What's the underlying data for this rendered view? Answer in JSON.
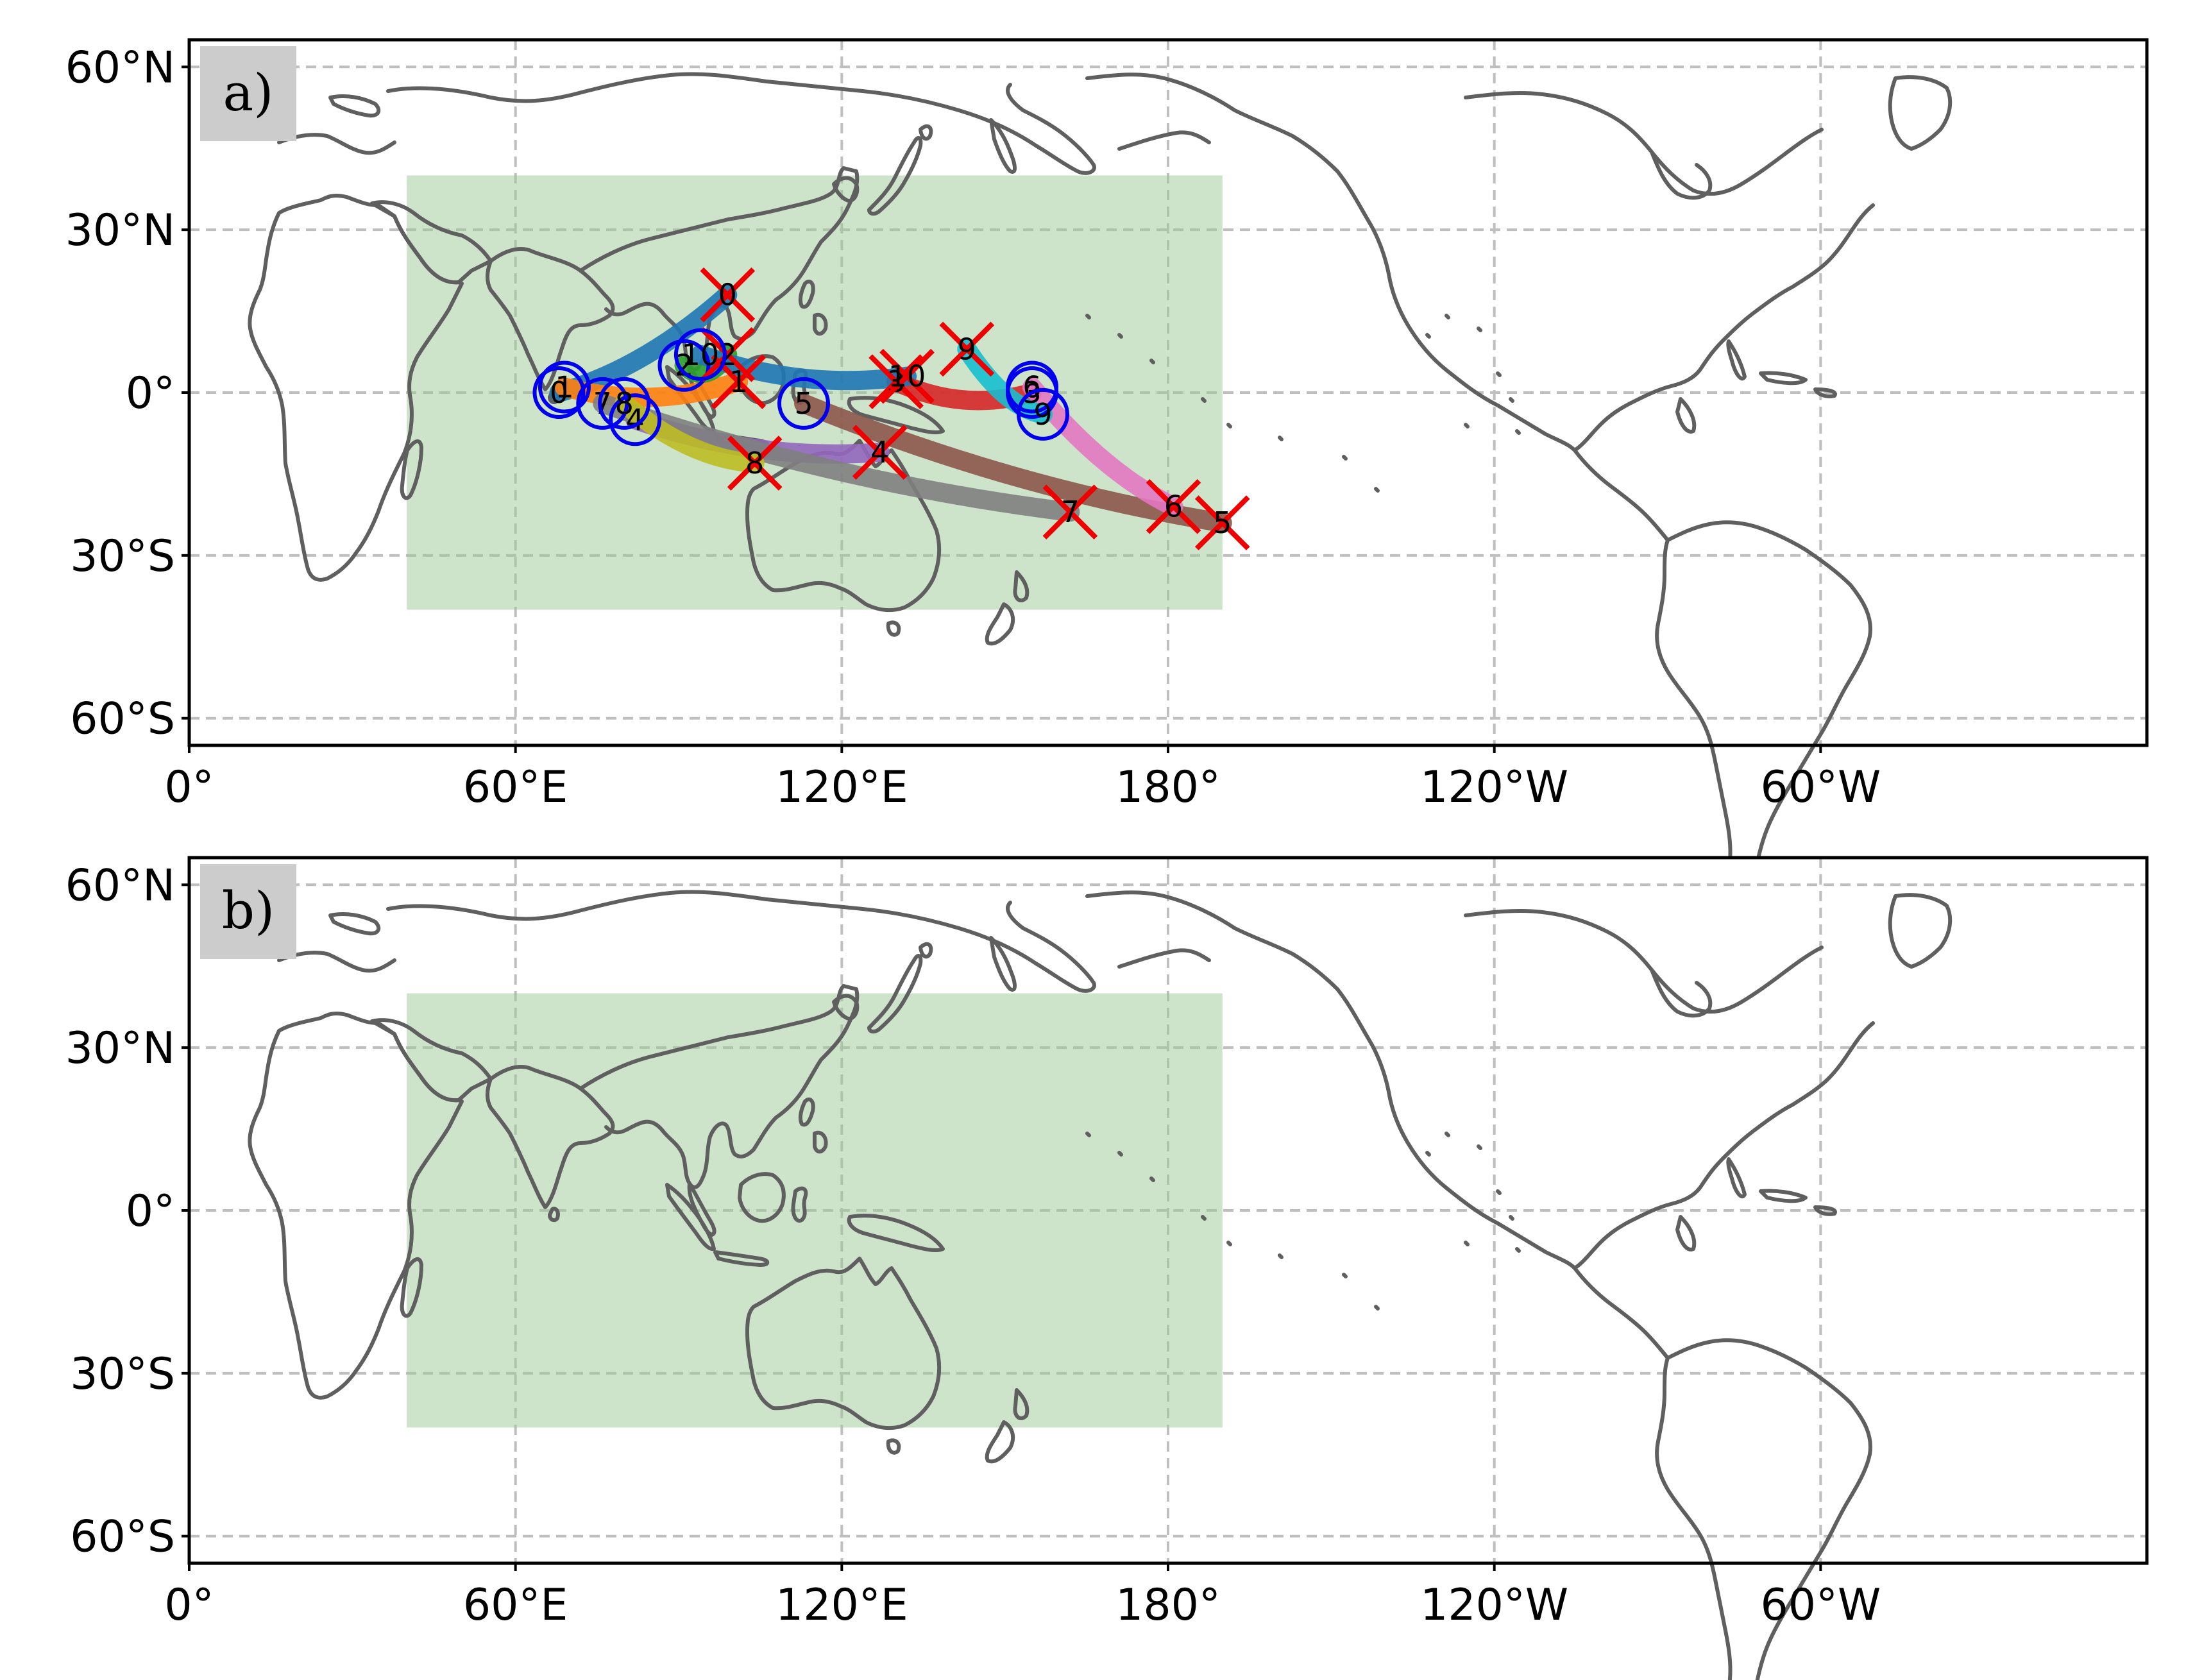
{
  "figure": {
    "background": "#ffffff",
    "region_box_color": "#9cca98",
    "coast_color": "#5f5f5f",
    "grid_color": "#bfbfbf"
  },
  "axes": {
    "lon_ticks": [
      "0°",
      "60°E",
      "120°E",
      "180°",
      "120°W",
      "60°W"
    ],
    "lat_ticks": [
      "60°N",
      "30°N",
      "0°",
      "30°S",
      "60°S"
    ],
    "lon_range": [
      0,
      360
    ],
    "lat_range": [
      -65,
      65
    ],
    "grid": true,
    "grid_style": "dashed"
  },
  "panels": [
    {
      "label": "a)",
      "region_box": {
        "lon": [
          40,
          190
        ],
        "lat": [
          -40,
          40
        ]
      },
      "has_tracks": true
    },
    {
      "label": "b)",
      "region_box": {
        "lon": [
          40,
          190
        ],
        "lat": [
          -40,
          40
        ]
      },
      "has_tracks": false
    }
  ],
  "chart_data": {
    "type": "map-tracks",
    "projection": "PlateCarree centered 180",
    "start_marker": {
      "shape": "circle",
      "color": "#0000ee"
    },
    "end_marker": {
      "shape": "x",
      "color": "#ee0000"
    },
    "tracks": [
      {
        "id": "0",
        "color": "#1f77b4",
        "start": [
          68,
          0
        ],
        "end": [
          99,
          18
        ]
      },
      {
        "id": "1",
        "color": "#ff7f0e",
        "start": [
          69,
          1
        ],
        "end": [
          101,
          2
        ]
      },
      {
        "id": "2",
        "color": "#2ca02c",
        "start": [
          91,
          5
        ],
        "end": [
          99,
          7
        ]
      },
      {
        "id": "3",
        "color": "#d62728",
        "start": [
          155,
          0
        ],
        "end": [
          130,
          2
        ]
      },
      {
        "id": "4",
        "color": "#9467bd",
        "start": [
          82,
          -5
        ],
        "end": [
          127,
          -11
        ]
      },
      {
        "id": "5",
        "color": "#8c564b",
        "start": [
          113,
          -2
        ],
        "end": [
          190,
          -24
        ]
      },
      {
        "id": "6",
        "color": "#e377c2",
        "start": [
          155,
          1
        ],
        "end": [
          181,
          -21
        ]
      },
      {
        "id": "7",
        "color": "#7f7f7f",
        "start": [
          76,
          -2
        ],
        "end": [
          162,
          -22
        ]
      },
      {
        "id": "8",
        "color": "#bcbd22",
        "start": [
          80,
          -2
        ],
        "end": [
          104,
          -13
        ]
      },
      {
        "id": "9",
        "color": "#17becf",
        "start": [
          157,
          -4
        ],
        "end": [
          143,
          8
        ]
      },
      {
        "id": "10",
        "color": "#1f77b4",
        "start": [
          94,
          7
        ],
        "end": [
          132,
          3
        ]
      }
    ]
  }
}
